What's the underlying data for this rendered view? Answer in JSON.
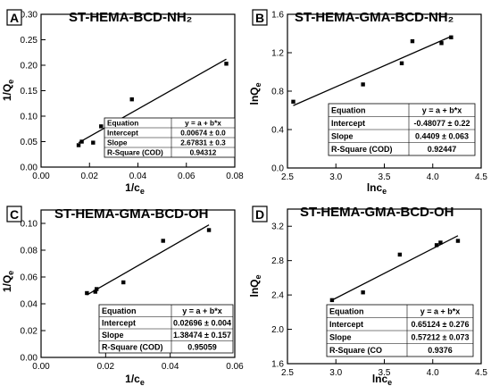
{
  "chart_data": [
    {
      "type": "scatter",
      "panel_letter": "A",
      "title": "ST-HEMA-BCD-NH₂",
      "xlabel": "1/c",
      "xlabel_sub": "e",
      "ylabel": "1/Q",
      "ylabel_sub": "e",
      "xlim": [
        0,
        0.08
      ],
      "ylim": [
        0,
        0.3
      ],
      "xticks": [
        "0.00",
        "0.02",
        "0.04",
        "0.06",
        "0.08"
      ],
      "yticks": [
        "0.00",
        "0.05",
        "0.10",
        "0.15",
        "0.20",
        "0.25",
        "0.30"
      ],
      "grid": false,
      "points": [
        {
          "x": 0.0155,
          "y": 0.043
        },
        {
          "x": 0.0168,
          "y": 0.05
        },
        {
          "x": 0.0215,
          "y": 0.048
        },
        {
          "x": 0.0248,
          "y": 0.08
        },
        {
          "x": 0.0375,
          "y": 0.133
        },
        {
          "x": 0.0765,
          "y": 0.203
        }
      ],
      "fit_line": {
        "x": [
          0.0155,
          0.0765
        ],
        "y": [
          0.048,
          0.212
        ]
      },
      "fit_table": [
        [
          "Equation",
          "y = a + b*x"
        ],
        [
          "Intercept",
          "0.00674 ± 0.0"
        ],
        [
          "Slope",
          "2.67831 ± 0.3"
        ],
        [
          "R-Square (COD)",
          "0.94312"
        ]
      ]
    },
    {
      "type": "scatter",
      "panel_letter": "B",
      "title": "ST-HEMA-GMA-BCD-NH₂",
      "xlabel": "lnc",
      "xlabel_sub": "e",
      "ylabel": "lnQ",
      "ylabel_sub": "e",
      "xlim": [
        2.5,
        4.5
      ],
      "ylim": [
        0.0,
        1.6
      ],
      "xticks": [
        "2.5",
        "3.0",
        "3.5",
        "4.0",
        "4.5"
      ],
      "yticks": [
        "0.0",
        "0.4",
        "0.8",
        "1.2",
        "1.6"
      ],
      "grid": false,
      "points": [
        {
          "x": 2.56,
          "y": 0.69
        },
        {
          "x": 3.28,
          "y": 0.87
        },
        {
          "x": 3.68,
          "y": 1.09
        },
        {
          "x": 3.79,
          "y": 1.32
        },
        {
          "x": 4.09,
          "y": 1.3
        },
        {
          "x": 4.19,
          "y": 1.36
        }
      ],
      "fit_line": {
        "x": [
          2.56,
          4.19
        ],
        "y": [
          0.65,
          1.37
        ]
      },
      "fit_table": [
        [
          "Equation",
          "y = a + b*x"
        ],
        [
          "Intercept",
          "-0.48077 ± 0.22"
        ],
        [
          "Slope",
          "0.4409 ± 0.063"
        ],
        [
          "R-Square (COD)",
          "0.92447"
        ]
      ]
    },
    {
      "type": "scatter",
      "panel_letter": "C",
      "title": "ST-HEMA-GMA-BCD-OH",
      "xlabel": "1/c",
      "xlabel_sub": "e",
      "ylabel": "1/Q",
      "ylabel_sub": "e",
      "xlim": [
        0,
        0.06
      ],
      "ylim": [
        0,
        0.11
      ],
      "xticks": [
        "0.00",
        "0.02",
        "0.04",
        "0.06"
      ],
      "yticks": [
        "0.00",
        "0.02",
        "0.04",
        "0.06",
        "0.08",
        "0.10"
      ],
      "grid": false,
      "points": [
        {
          "x": 0.0142,
          "y": 0.048
        },
        {
          "x": 0.0168,
          "y": 0.049
        },
        {
          "x": 0.0172,
          "y": 0.051
        },
        {
          "x": 0.0255,
          "y": 0.056
        },
        {
          "x": 0.0378,
          "y": 0.087
        },
        {
          "x": 0.052,
          "y": 0.095
        }
      ],
      "fit_line": {
        "x": [
          0.0142,
          0.052
        ],
        "y": [
          0.0466,
          0.0989
        ]
      },
      "fit_table": [
        [
          "Equation",
          "y = a + b*x"
        ],
        [
          "Intercept",
          "0.02696 ± 0.004"
        ],
        [
          "Slope",
          "1.38474 ± 0.157"
        ],
        [
          "R-Square (COD)",
          "0.95059"
        ]
      ]
    },
    {
      "type": "scatter",
      "panel_letter": "D",
      "title": "ST-HEMA-GMA-BCD-OH",
      "xlabel": "lnc",
      "xlabel_sub": "e",
      "ylabel": "lnQ",
      "ylabel_sub": "e",
      "xlim": [
        2.5,
        4.5
      ],
      "ylim": [
        1.6,
        3.4
      ],
      "xticks": [
        "2.5",
        "3.0",
        "3.5",
        "4.0",
        "4.5"
      ],
      "yticks": [
        "1.6",
        "2.0",
        "2.4",
        "2.8",
        "3.2"
      ],
      "grid": false,
      "points": [
        {
          "x": 2.96,
          "y": 2.34
        },
        {
          "x": 3.28,
          "y": 2.43
        },
        {
          "x": 3.66,
          "y": 2.87
        },
        {
          "x": 4.04,
          "y": 2.98
        },
        {
          "x": 4.08,
          "y": 3.01
        },
        {
          "x": 4.26,
          "y": 3.03
        }
      ],
      "fit_line": {
        "x": [
          2.96,
          4.26
        ],
        "y": [
          2.34,
          3.09
        ]
      },
      "fit_table": [
        [
          "Equation",
          "y = a + b*x"
        ],
        [
          "Intercept",
          "0.65124 ± 0.276"
        ],
        [
          "Slope",
          "0.57212 ± 0.073"
        ],
        [
          "R-Square (CO",
          "0.9376"
        ]
      ]
    }
  ]
}
